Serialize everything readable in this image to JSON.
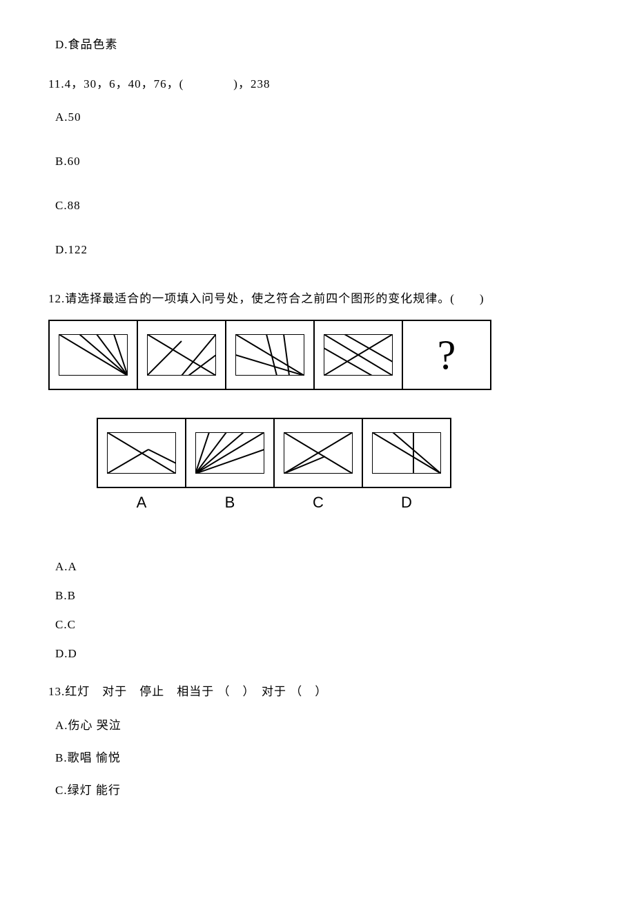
{
  "q10_optD": "D.食品色素",
  "q11": {
    "stem": "11.4，30，6，40，76，(　　　　)，238",
    "optA": "A.50",
    "optB": "B.60",
    "optC": "C.88",
    "optD": "D.122"
  },
  "q12": {
    "stem": "12.请选择最适合的一项填入问号处，使之符合之前四个图形的变化规律。(　　)",
    "qmark": "?",
    "labels": {
      "a": "A",
      "b": "B",
      "c": "C",
      "d": "D"
    },
    "optA": "A.A",
    "optB": "B.B",
    "optC": "C.C",
    "optD": "D.D",
    "panel_style": {
      "outer_border_color": "#000000",
      "outer_border_width": 2,
      "inner_stroke_color": "#000000",
      "inner_stroke_width": 2,
      "inner_w": 100,
      "inner_h": 60
    },
    "sequence": [
      {
        "lines": [
          [
            0,
            0,
            100,
            0
          ],
          [
            100,
            0,
            100,
            60
          ],
          [
            100,
            60,
            0,
            60
          ],
          [
            0,
            60,
            0,
            0
          ],
          [
            0,
            0,
            100,
            60
          ],
          [
            30,
            0,
            100,
            60
          ],
          [
            55,
            0,
            100,
            60
          ],
          [
            80,
            0,
            100,
            60
          ]
        ]
      },
      {
        "lines": [
          [
            0,
            0,
            100,
            0
          ],
          [
            100,
            0,
            100,
            60
          ],
          [
            100,
            60,
            0,
            60
          ],
          [
            0,
            60,
            0,
            0
          ],
          [
            0,
            0,
            100,
            60
          ],
          [
            0,
            60,
            50,
            10
          ],
          [
            50,
            60,
            100,
            0
          ],
          [
            60,
            60,
            100,
            30
          ]
        ]
      },
      {
        "lines": [
          [
            0,
            0,
            100,
            0
          ],
          [
            100,
            0,
            100,
            60
          ],
          [
            100,
            60,
            0,
            60
          ],
          [
            0,
            60,
            0,
            0
          ],
          [
            0,
            0,
            100,
            60
          ],
          [
            45,
            0,
            60,
            60
          ],
          [
            70,
            0,
            78,
            60
          ],
          [
            0,
            30,
            100,
            60
          ]
        ]
      },
      {
        "lines": [
          [
            0,
            0,
            100,
            0
          ],
          [
            100,
            0,
            100,
            60
          ],
          [
            100,
            60,
            0,
            60
          ],
          [
            0,
            60,
            0,
            0
          ],
          [
            0,
            0,
            100,
            60
          ],
          [
            0,
            60,
            100,
            0
          ],
          [
            0,
            20,
            70,
            60
          ],
          [
            30,
            0,
            100,
            40
          ]
        ]
      }
    ],
    "answers": [
      {
        "lines": [
          [
            0,
            0,
            100,
            0
          ],
          [
            100,
            0,
            100,
            60
          ],
          [
            100,
            60,
            0,
            60
          ],
          [
            0,
            60,
            0,
            0
          ],
          [
            0,
            0,
            100,
            60
          ],
          [
            0,
            60,
            60,
            25
          ],
          [
            60,
            25,
            100,
            45
          ]
        ]
      },
      {
        "lines": [
          [
            0,
            0,
            100,
            0
          ],
          [
            100,
            0,
            100,
            60
          ],
          [
            100,
            60,
            0,
            60
          ],
          [
            0,
            60,
            0,
            0
          ],
          [
            0,
            60,
            20,
            0
          ],
          [
            0,
            60,
            45,
            0
          ],
          [
            0,
            60,
            70,
            0
          ],
          [
            0,
            60,
            100,
            0
          ],
          [
            0,
            60,
            100,
            25
          ]
        ]
      },
      {
        "lines": [
          [
            0,
            0,
            100,
            0
          ],
          [
            100,
            0,
            100,
            60
          ],
          [
            100,
            60,
            0,
            60
          ],
          [
            0,
            60,
            0,
            0
          ],
          [
            0,
            0,
            100,
            60
          ],
          [
            0,
            60,
            100,
            0
          ],
          [
            0,
            60,
            60,
            35
          ]
        ]
      },
      {
        "lines": [
          [
            0,
            0,
            100,
            0
          ],
          [
            100,
            0,
            100,
            60
          ],
          [
            100,
            60,
            0,
            60
          ],
          [
            0,
            60,
            0,
            0
          ],
          [
            0,
            0,
            100,
            60
          ],
          [
            30,
            0,
            100,
            60
          ],
          [
            60,
            0,
            60,
            60
          ]
        ]
      }
    ]
  },
  "q13": {
    "stem": "13.红灯　对于　停止　相当于 （　）　对于 （　）",
    "optA": "A.伤心 哭泣",
    "optB": "B.歌唱 愉悦",
    "optC": "C.绿灯 能行"
  }
}
